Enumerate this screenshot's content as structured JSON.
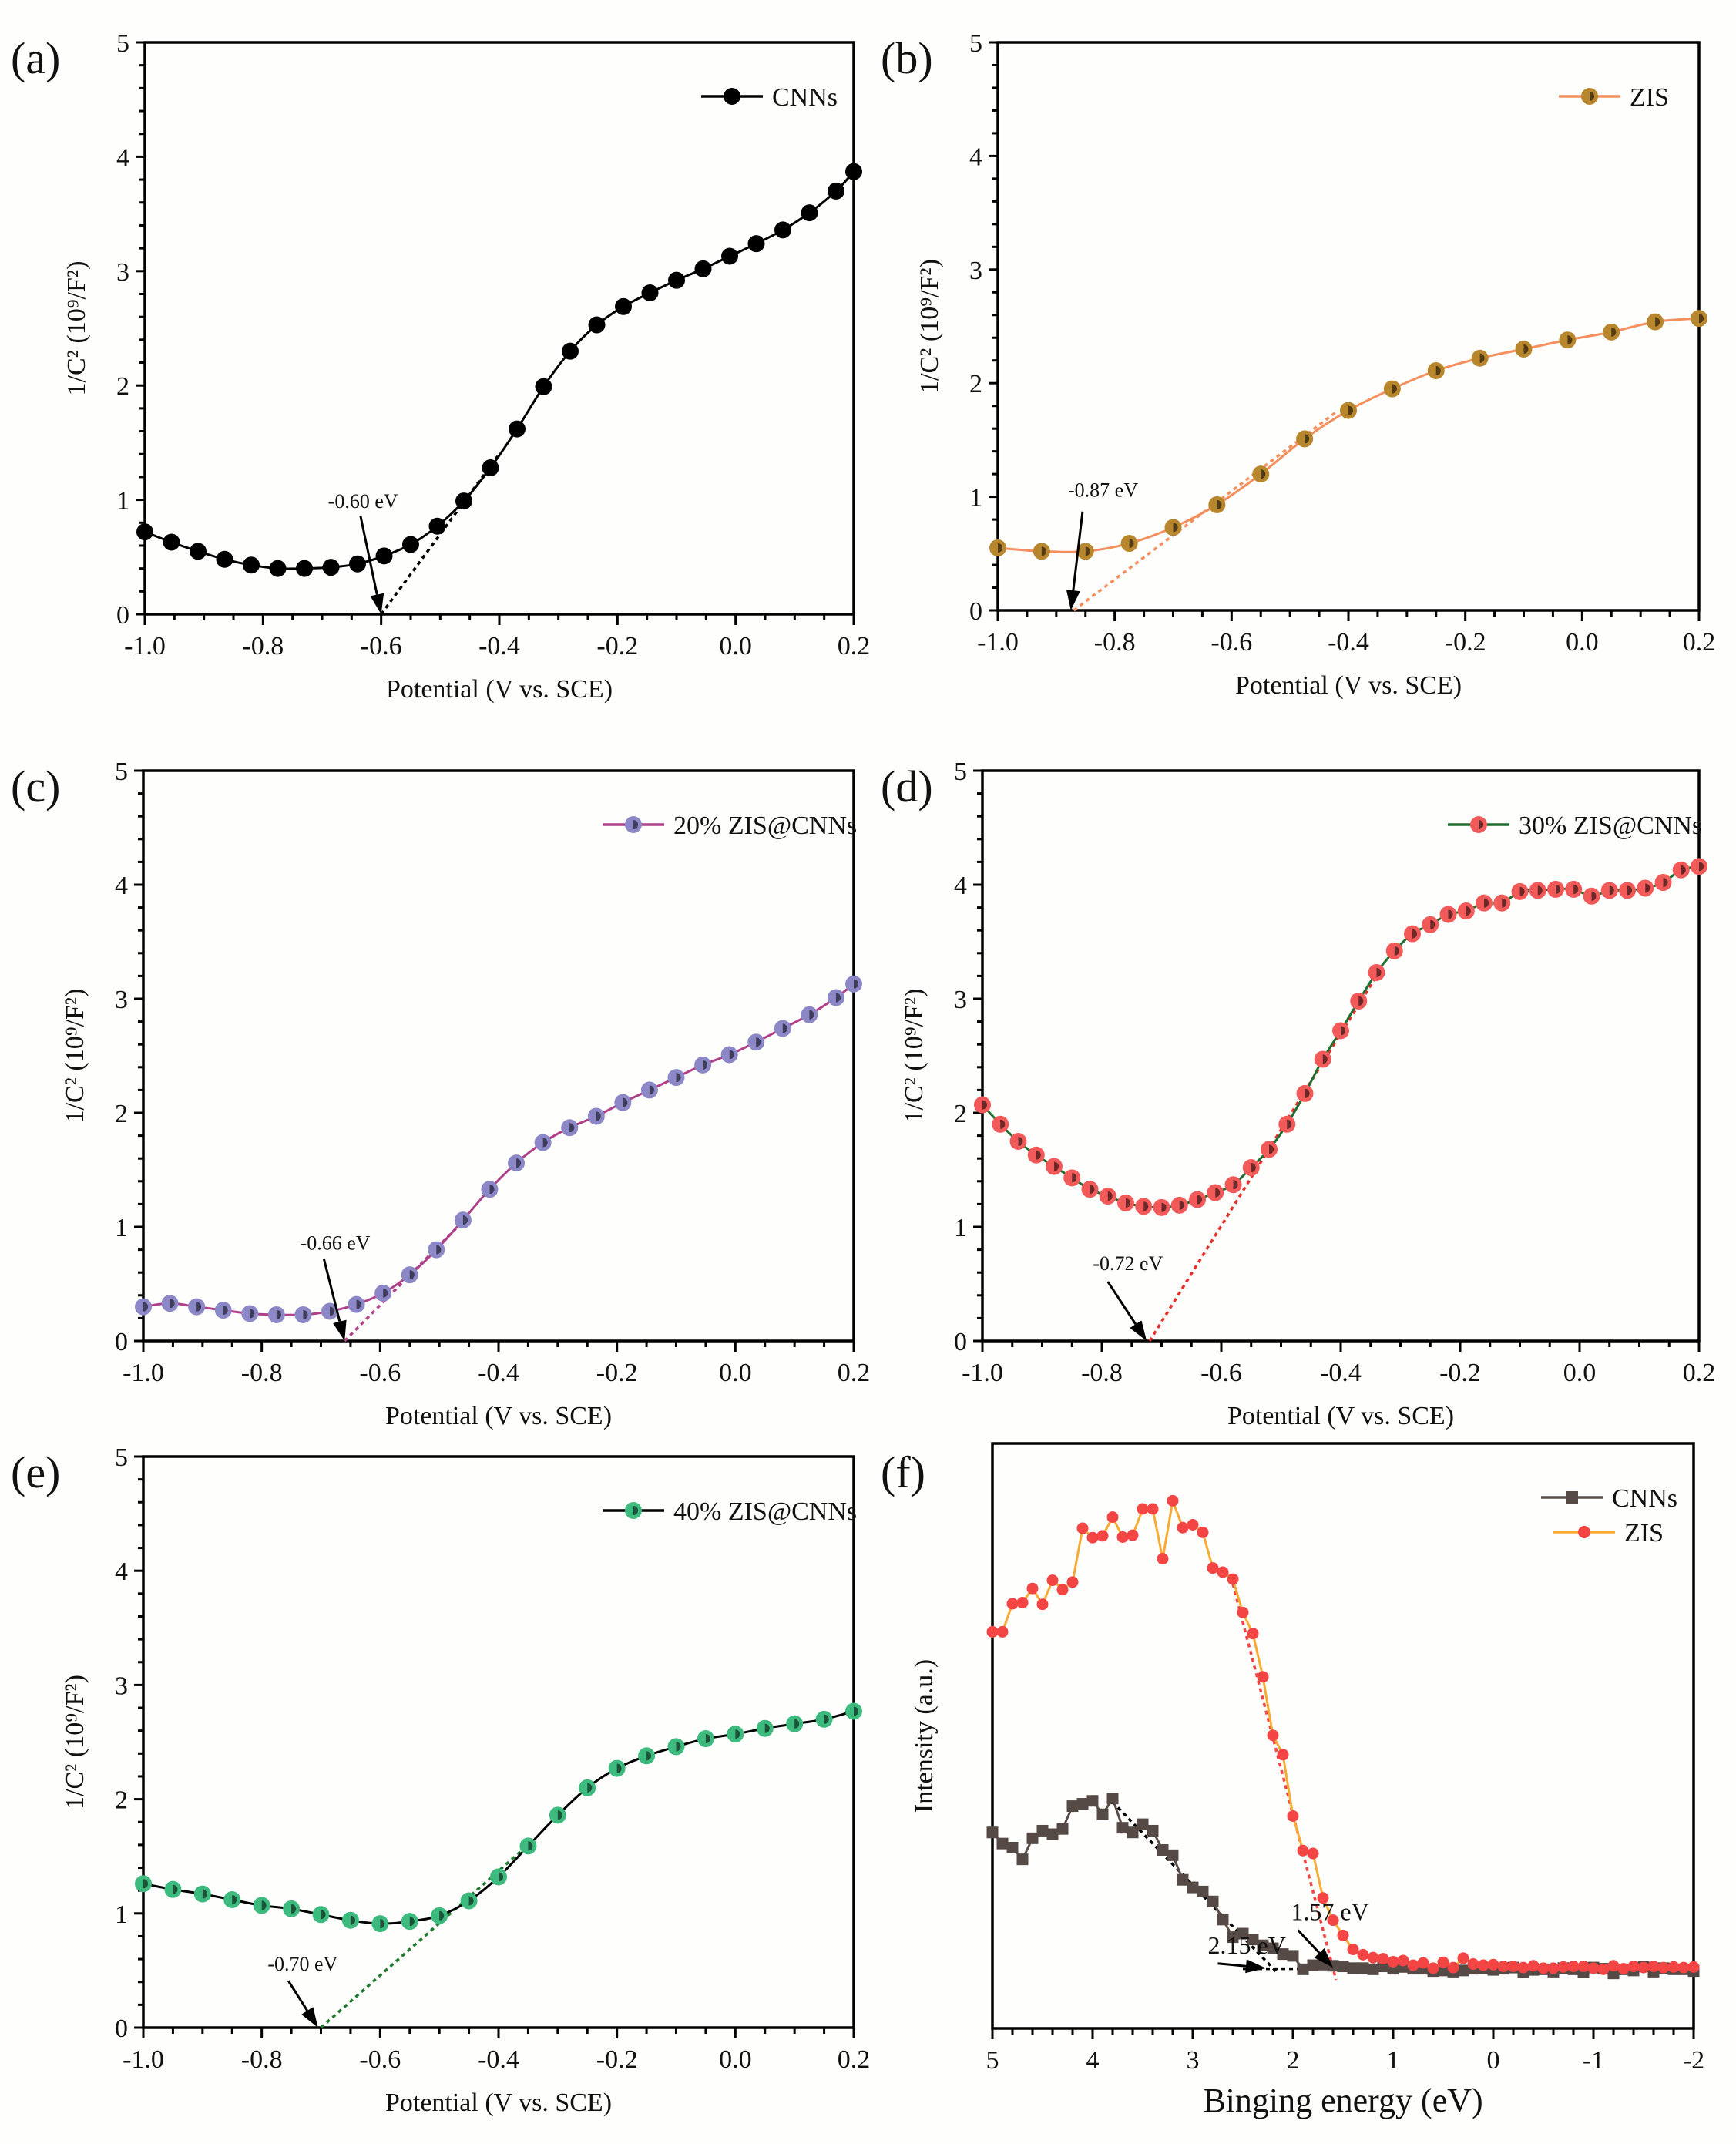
{
  "chart_data": [
    {
      "id": "a",
      "type": "line",
      "panel_label": "(a)",
      "title": "",
      "xlabel": "Potential (V vs. SCE)",
      "ylabel": "1/C² (10⁹/F²)",
      "xlim": [
        -1.0,
        0.2
      ],
      "ylim": [
        0,
        5
      ],
      "xticks": [
        -1.0,
        -0.8,
        -0.6,
        -0.4,
        -0.2,
        0.0,
        0.2
      ],
      "xtick_labels": [
        "-1.0",
        "-0.8",
        "-0.6",
        "-0.4",
        "-0.2",
        "0.0",
        "0.2"
      ],
      "yticks": [
        0,
        1,
        2,
        3,
        4,
        5
      ],
      "ytick_labels": [
        "0",
        "1",
        "2",
        "3",
        "4",
        "5"
      ],
      "legend_position": "top-right",
      "series": [
        {
          "name": "CNNs",
          "line_color": "#000000",
          "marker_color": "#000000",
          "marker": "circle",
          "x": [
            -1.0,
            -0.955,
            -0.91,
            -0.865,
            -0.82,
            -0.775,
            -0.73,
            -0.685,
            -0.64,
            -0.595,
            -0.55,
            -0.505,
            -0.46,
            -0.415,
            -0.37,
            -0.325,
            -0.28,
            -0.235,
            -0.19,
            -0.145,
            -0.1,
            -0.055,
            -0.01,
            0.035,
            0.08,
            0.125,
            0.17,
            0.2
          ],
          "y": [
            0.72,
            0.63,
            0.55,
            0.48,
            0.43,
            0.4,
            0.4,
            0.41,
            0.44,
            0.51,
            0.61,
            0.77,
            0.99,
            1.28,
            1.62,
            1.99,
            2.3,
            2.53,
            2.69,
            2.81,
            2.92,
            3.02,
            3.13,
            3.24,
            3.36,
            3.51,
            3.7,
            3.87
          ]
        }
      ],
      "fit_line": {
        "color": "#000000",
        "from": [
          -0.6,
          0.0
        ],
        "to": [
          -0.4,
          1.4
        ]
      },
      "annotation": {
        "text": "-0.60 eV",
        "value": -0.6,
        "text_at": [
          -0.69,
          0.93
        ],
        "arrow_from": [
          -0.635,
          0.86
        ],
        "arrow_to": [
          -0.6,
          0.0
        ]
      }
    },
    {
      "id": "b",
      "type": "line",
      "panel_label": "(b)",
      "title": "",
      "xlabel": "Potential (V vs. SCE)",
      "ylabel": "1/C² (10⁹/F²)",
      "xlim": [
        -1.0,
        0.2
      ],
      "ylim": [
        0,
        5
      ],
      "xticks": [
        -1.0,
        -0.8,
        -0.6,
        -0.4,
        -0.2,
        0.0,
        0.2
      ],
      "xtick_labels": [
        "-1.0",
        "-0.8",
        "-0.6",
        "-0.4",
        "-0.2",
        "0.0",
        "0.2"
      ],
      "yticks": [
        0,
        1,
        2,
        3,
        4,
        5
      ],
      "ytick_labels": [
        "0",
        "1",
        "2",
        "3",
        "4",
        "5"
      ],
      "legend_position": "top-right",
      "series": [
        {
          "name": "ZIS",
          "line_color": "#f4905e",
          "marker_color": "#b8862c",
          "marker": "half-circle",
          "x": [
            -1.0,
            -0.925,
            -0.85,
            -0.775,
            -0.7,
            -0.625,
            -0.55,
            -0.475,
            -0.4,
            -0.325,
            -0.25,
            -0.175,
            -0.1,
            -0.025,
            0.05,
            0.125,
            0.2
          ],
          "y": [
            0.55,
            0.52,
            0.52,
            0.59,
            0.73,
            0.93,
            1.2,
            1.51,
            1.76,
            1.95,
            2.11,
            2.22,
            2.3,
            2.38,
            2.45,
            2.54,
            2.57
          ]
        }
      ],
      "fit_line": {
        "color": "#f4905e",
        "from": [
          -0.87,
          0.0
        ],
        "to": [
          -0.42,
          1.75
        ]
      },
      "annotation": {
        "text": "-0.87 eV",
        "value": -0.87,
        "text_at": [
          -0.88,
          1.0
        ],
        "arrow_from": [
          -0.855,
          0.87
        ],
        "arrow_to": [
          -0.875,
          0.0
        ]
      }
    },
    {
      "id": "c",
      "type": "line",
      "panel_label": "(c)",
      "title": "",
      "xlabel": "Potential (V vs. SCE)",
      "ylabel": "1/C² (10⁹/F²)",
      "xlim": [
        -1.0,
        0.2
      ],
      "ylim": [
        0,
        5
      ],
      "xticks": [
        -1.0,
        -0.8,
        -0.6,
        -0.4,
        -0.2,
        0.0,
        0.2
      ],
      "xtick_labels": [
        "-1.0",
        "-0.8",
        "-0.6",
        "-0.4",
        "-0.2",
        "0.0",
        "0.2"
      ],
      "yticks": [
        0,
        1,
        2,
        3,
        4,
        5
      ],
      "ytick_labels": [
        "0",
        "1",
        "2",
        "3",
        "4",
        "5"
      ],
      "legend_position": "top-right",
      "series": [
        {
          "name": "20% ZIS@CNNs",
          "line_color": "#b0408a",
          "marker_color": "#8c88c8",
          "marker": "half-circle",
          "x": [
            -1.0,
            -0.955,
            -0.91,
            -0.865,
            -0.82,
            -0.775,
            -0.73,
            -0.685,
            -0.64,
            -0.595,
            -0.55,
            -0.505,
            -0.46,
            -0.415,
            -0.37,
            -0.325,
            -0.28,
            -0.235,
            -0.19,
            -0.145,
            -0.1,
            -0.055,
            -0.01,
            0.035,
            0.08,
            0.125,
            0.17,
            0.2
          ],
          "y": [
            0.3,
            0.33,
            0.3,
            0.27,
            0.24,
            0.23,
            0.23,
            0.26,
            0.32,
            0.42,
            0.58,
            0.8,
            1.06,
            1.33,
            1.56,
            1.74,
            1.87,
            1.97,
            2.09,
            2.2,
            2.31,
            2.42,
            2.51,
            2.62,
            2.74,
            2.86,
            3.01,
            3.13
          ]
        }
      ],
      "fit_line": {
        "color": "#b0408a",
        "from": [
          -0.66,
          0.0
        ],
        "to": [
          -0.45,
          1.1
        ]
      },
      "annotation": {
        "text": "-0.66 eV",
        "value": -0.66,
        "text_at": [
          -0.735,
          0.8
        ],
        "arrow_from": [
          -0.695,
          0.72
        ],
        "arrow_to": [
          -0.66,
          0.0
        ]
      }
    },
    {
      "id": "d",
      "type": "line",
      "panel_label": "(d)",
      "title": "",
      "xlabel": "Potential (V vs. SCE)",
      "ylabel": "1/C² (10⁹/F²)",
      "xlim": [
        -1.0,
        0.2
      ],
      "ylim": [
        0,
        5
      ],
      "xticks": [
        -1.0,
        -0.8,
        -0.6,
        -0.4,
        -0.2,
        0.0,
        0.2
      ],
      "xtick_labels": [
        "-1.0",
        "-0.8",
        "-0.6",
        "-0.4",
        "-0.2",
        "0.0",
        "0.2"
      ],
      "yticks": [
        0,
        1,
        2,
        3,
        4,
        5
      ],
      "ytick_labels": [
        "0",
        "1",
        "2",
        "3",
        "4",
        "5"
      ],
      "legend_position": "top-right",
      "series": [
        {
          "name": "30% ZIS@CNNs",
          "line_color": "#1f6e30",
          "marker_color": "#f25a5a",
          "marker": "half-circle",
          "x": [
            -1.0,
            -0.97,
            -0.94,
            -0.91,
            -0.88,
            -0.85,
            -0.82,
            -0.79,
            -0.76,
            -0.73,
            -0.7,
            -0.67,
            -0.64,
            -0.61,
            -0.58,
            -0.55,
            -0.52,
            -0.49,
            -0.46,
            -0.43,
            -0.4,
            -0.37,
            -0.34,
            -0.31,
            -0.28,
            -0.25,
            -0.22,
            -0.19,
            -0.16,
            -0.13,
            -0.1,
            -0.07,
            -0.04,
            -0.01,
            0.02,
            0.05,
            0.08,
            0.11,
            0.14,
            0.17,
            0.2
          ],
          "y": [
            2.07,
            1.9,
            1.75,
            1.63,
            1.53,
            1.43,
            1.33,
            1.27,
            1.21,
            1.18,
            1.17,
            1.19,
            1.24,
            1.3,
            1.37,
            1.52,
            1.68,
            1.9,
            2.17,
            2.47,
            2.72,
            2.98,
            3.23,
            3.42,
            3.57,
            3.65,
            3.74,
            3.77,
            3.84,
            3.84,
            3.94,
            3.95,
            3.96,
            3.96,
            3.9,
            3.95,
            3.95,
            3.97,
            4.02,
            4.13,
            4.16
          ]
        }
      ],
      "fit_line": {
        "color": "#e8302a",
        "from": [
          -0.72,
          0.0
        ],
        "to": [
          -0.34,
          3.2
        ]
      },
      "annotation": {
        "text": "-0.72 eV",
        "value": -0.72,
        "text_at": [
          -0.815,
          0.62
        ],
        "arrow_from": [
          -0.79,
          0.52
        ],
        "arrow_to": [
          -0.725,
          0.0
        ]
      }
    },
    {
      "id": "e",
      "type": "line",
      "panel_label": "(e)",
      "title": "",
      "xlabel": "Potential (V vs. SCE)",
      "ylabel": "1/C² (10⁹/F²)",
      "xlim": [
        -1.0,
        0.2
      ],
      "ylim": [
        0,
        5
      ],
      "xticks": [
        -1.0,
        -0.8,
        -0.6,
        -0.4,
        -0.2,
        0.0,
        0.2
      ],
      "xtick_labels": [
        "-1.0",
        "-0.8",
        "-0.6",
        "-0.4",
        "-0.2",
        "0.0",
        "0.2"
      ],
      "yticks": [
        0,
        1,
        2,
        3,
        4,
        5
      ],
      "ytick_labels": [
        "0",
        "1",
        "2",
        "3",
        "4",
        "5"
      ],
      "legend_position": "top-right",
      "series": [
        {
          "name": "40% ZIS@CNNs",
          "line_color": "#000000",
          "marker_color": "#3dba7e",
          "marker": "half-circle",
          "x": [
            -1.0,
            -0.95,
            -0.9,
            -0.85,
            -0.8,
            -0.75,
            -0.7,
            -0.65,
            -0.6,
            -0.55,
            -0.5,
            -0.45,
            -0.4,
            -0.35,
            -0.3,
            -0.25,
            -0.2,
            -0.15,
            -0.1,
            -0.05,
            0.0,
            0.05,
            0.1,
            0.15,
            0.2
          ],
          "y": [
            1.26,
            1.21,
            1.17,
            1.12,
            1.07,
            1.04,
            0.99,
            0.94,
            0.91,
            0.93,
            0.98,
            1.11,
            1.32,
            1.59,
            1.86,
            2.1,
            2.27,
            2.38,
            2.46,
            2.53,
            2.57,
            2.62,
            2.66,
            2.7,
            2.77
          ]
        }
      ],
      "fit_line": {
        "color": "#1f7a30",
        "from": [
          -0.7,
          0.0
        ],
        "to": [
          -0.35,
          1.6
        ]
      },
      "annotation": {
        "text": "-0.70 eV",
        "value": -0.7,
        "text_at": [
          -0.79,
          0.5
        ],
        "arrow_from": [
          -0.755,
          0.41
        ],
        "arrow_to": [
          -0.705,
          0.0
        ]
      }
    },
    {
      "id": "f",
      "type": "line",
      "panel_label": "(f)",
      "title": "",
      "xlabel": "Binging energy (eV)",
      "ylabel": "Intensity (a.u.)",
      "xlim": [
        5,
        -2
      ],
      "ylim": [
        0,
        100
      ],
      "xticks": [
        5,
        4,
        3,
        2,
        1,
        0,
        -1,
        -2
      ],
      "xtick_labels": [
        "5",
        "4",
        "3",
        "2",
        "1",
        "0",
        "-1",
        "-2"
      ],
      "yticks": [],
      "ytick_labels": [],
      "legend_position": "top-right",
      "series": [
        {
          "name": "CNNs",
          "line_color": "#5a4e4a",
          "marker_color": "#554a46",
          "marker": "square",
          "x": [
            5.0,
            4.9,
            4.8,
            4.7,
            4.6,
            4.5,
            4.4,
            4.3,
            4.2,
            4.1,
            4.0,
            3.9,
            3.8,
            3.7,
            3.6,
            3.5,
            3.4,
            3.3,
            3.2,
            3.1,
            3.0,
            2.9,
            2.8,
            2.7,
            2.6,
            2.5,
            2.4,
            2.3,
            2.2,
            2.1,
            2.0,
            1.9,
            1.8,
            1.7,
            1.6,
            1.5,
            1.4,
            1.3,
            1.2,
            1.1,
            1.0,
            0.9,
            0.8,
            0.7,
            0.6,
            0.5,
            0.4,
            0.3,
            0.2,
            0.1,
            0.0,
            -0.1,
            -0.2,
            -0.3,
            -0.4,
            -0.5,
            -0.6,
            -0.7,
            -0.8,
            -0.9,
            -1.0,
            -1.1,
            -1.2,
            -1.3,
            -1.4,
            -1.5,
            -1.6,
            -1.7,
            -1.8,
            -1.9,
            -2.0
          ],
          "y": [
            33.5,
            31.6,
            30.9,
            28.9,
            32.5,
            33.8,
            33.2,
            34.1,
            38.0,
            38.4,
            38.9,
            36.6,
            39.3,
            34.3,
            33.5,
            34.9,
            33.8,
            30.5,
            29.6,
            25.4,
            24.1,
            23.4,
            21.7,
            18.6,
            15.6,
            16.2,
            15.2,
            14.2,
            13.7,
            12.7,
            12.4,
            10.1,
            10.8,
            10.9,
            10.7,
            10.6,
            10.3,
            10.3,
            10.1,
            10.6,
            10.2,
            10.5,
            10.2,
            10.2,
            9.8,
            9.9,
            9.7,
            9.9,
            10.2,
            10.3,
            10.0,
            10.2,
            10.4,
            9.6,
            10.0,
            10.1,
            9.7,
            10.3,
            10.1,
            9.6,
            10.4,
            10.2,
            9.4,
            10.1,
            9.9,
            10.6,
            9.7,
            10.3,
            10.1,
            10.1,
            9.8
          ]
        },
        {
          "name": "ZIS",
          "line_color": "#f6ac33",
          "marker_color": "#f44545",
          "marker": "circle",
          "x": [
            5.0,
            4.9,
            4.8,
            4.7,
            4.6,
            4.5,
            4.4,
            4.3,
            4.2,
            4.1,
            4.0,
            3.9,
            3.8,
            3.7,
            3.6,
            3.5,
            3.4,
            3.3,
            3.2,
            3.1,
            3.0,
            2.9,
            2.8,
            2.7,
            2.6,
            2.5,
            2.4,
            2.3,
            2.2,
            2.1,
            2.0,
            1.9,
            1.8,
            1.7,
            1.6,
            1.5,
            1.4,
            1.3,
            1.2,
            1.1,
            1.0,
            0.9,
            0.8,
            0.7,
            0.6,
            0.5,
            0.4,
            0.3,
            0.2,
            0.1,
            0.0,
            -0.1,
            -0.2,
            -0.3,
            -0.4,
            -0.5,
            -0.6,
            -0.7,
            -0.8,
            -0.9,
            -1.0,
            -1.1,
            -1.2,
            -1.3,
            -1.4,
            -1.5,
            -1.6,
            -1.7,
            -1.8,
            -1.9,
            -2.0
          ],
          "y": [
            67.8,
            67.8,
            72.6,
            72.8,
            75.2,
            72.5,
            76.6,
            75.0,
            76.3,
            85.5,
            83.9,
            84.2,
            87.4,
            84.0,
            84.3,
            88.8,
            88.8,
            80.3,
            90.2,
            85.6,
            86.1,
            84.8,
            78.7,
            78.0,
            76.8,
            71.1,
            67.5,
            60.1,
            50.1,
            46.8,
            36.3,
            30.4,
            29.9,
            22.3,
            18.5,
            15.9,
            13.5,
            12.6,
            12.1,
            11.9,
            11.4,
            11.6,
            10.8,
            11.2,
            10.3,
            11.3,
            10.4,
            12.0,
            11.0,
            10.8,
            10.9,
            10.6,
            10.6,
            10.4,
            10.7,
            10.3,
            10.3,
            10.5,
            10.6,
            10.6,
            10.3,
            10.1,
            10.7,
            10.2,
            10.6,
            10.4,
            10.6,
            10.4,
            10.5,
            10.4,
            10.5
          ]
        }
      ],
      "fit_lines": [
        {
          "color": "#000000",
          "from": [
            3.8,
            38.7
          ],
          "to": [
            2.15,
            9.4
          ]
        },
        {
          "color": "#000000",
          "from": [
            2.5,
            10.2
          ],
          "to": [
            0.2,
            10.2
          ]
        },
        {
          "color": "#f44545",
          "from": [
            2.6,
            76.0
          ],
          "to": [
            1.57,
            8.3
          ]
        }
      ],
      "annotations": [
        {
          "text": "1.57 eV",
          "value": 1.57,
          "text_at": [
            2.02,
            18.5
          ],
          "arrow_from": [
            1.95,
            16.8
          ],
          "arrow_to": [
            1.6,
            10.4
          ]
        },
        {
          "text": "2.15 eV",
          "value": 2.15,
          "text_at": [
            2.85,
            12.8
          ],
          "arrow_from": [
            2.75,
            11.1
          ],
          "arrow_to": [
            2.27,
            10.3
          ]
        }
      ]
    }
  ]
}
